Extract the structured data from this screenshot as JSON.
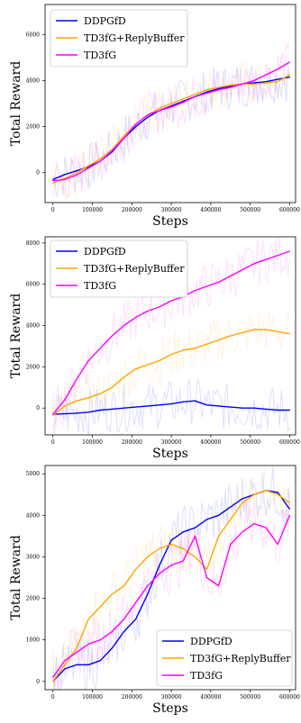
{
  "chart_data": [
    {
      "type": "line",
      "xlabel": "Steps",
      "ylabel": "Total Reward",
      "xlim": [
        -20000,
        615000
      ],
      "ylim": [
        -1300,
        7300
      ],
      "xticks": [
        "0",
        "100000",
        "200000",
        "300000",
        "400000",
        "500000",
        "600000"
      ],
      "yticks": [
        "0",
        "2000",
        "4000",
        "6000"
      ],
      "legend": "top-left",
      "x": [
        0,
        30000,
        60000,
        90000,
        120000,
        150000,
        180000,
        210000,
        240000,
        270000,
        300000,
        330000,
        360000,
        390000,
        420000,
        450000,
        480000,
        510000,
        540000,
        570000,
        600000
      ],
      "series": [
        {
          "name": "DDPGfD",
          "color": "#0000ff",
          "values": [
            -300,
            -80,
            80,
            250,
            500,
            900,
            1500,
            2000,
            2400,
            2700,
            2900,
            3100,
            3300,
            3500,
            3650,
            3750,
            3850,
            3900,
            3950,
            4050,
            4150
          ]
        },
        {
          "name": "TD3fG+ReplyBuffer",
          "color": "#ffa500",
          "values": [
            -450,
            -250,
            0,
            300,
            600,
            1000,
            1600,
            2100,
            2500,
            2800,
            3000,
            3200,
            3400,
            3600,
            3700,
            3800,
            3850,
            3850,
            3900,
            3950,
            4250
          ]
        },
        {
          "name": "TD3fG",
          "color": "#ff00ff",
          "values": [
            -350,
            -300,
            -100,
            200,
            500,
            950,
            1500,
            2100,
            2500,
            2700,
            2850,
            3050,
            3300,
            3450,
            3600,
            3700,
            3850,
            4000,
            4250,
            4500,
            4800
          ]
        }
      ]
    },
    {
      "type": "line",
      "xlabel": "Steps",
      "ylabel": "Total Reward",
      "xlim": [
        -20000,
        615000
      ],
      "ylim": [
        -1300,
        8300
      ],
      "xticks": [
        "0",
        "100000",
        "200000",
        "300000",
        "400000",
        "500000",
        "600000"
      ],
      "yticks": [
        "0",
        "2000",
        "4000",
        "6000",
        "8000"
      ],
      "legend": "top-left",
      "x": [
        0,
        30000,
        60000,
        90000,
        120000,
        150000,
        180000,
        210000,
        240000,
        270000,
        300000,
        330000,
        360000,
        390000,
        420000,
        450000,
        480000,
        510000,
        540000,
        570000,
        600000
      ],
      "series": [
        {
          "name": "DDPGfD",
          "color": "#0000ff",
          "values": [
            -300,
            -280,
            -250,
            -200,
            -100,
            -50,
            0,
            50,
            100,
            150,
            200,
            300,
            350,
            150,
            100,
            50,
            0,
            0,
            -50,
            -100,
            -100
          ]
        },
        {
          "name": "TD3fG+ReplyBuffer",
          "color": "#ffa500",
          "values": [
            -350,
            100,
            350,
            500,
            700,
            1000,
            1500,
            1900,
            2100,
            2300,
            2600,
            2800,
            2900,
            3100,
            3300,
            3500,
            3650,
            3800,
            3800,
            3700,
            3600
          ]
        },
        {
          "name": "TD3fG",
          "color": "#ff00ff",
          "values": [
            -300,
            400,
            1400,
            2300,
            2900,
            3500,
            4000,
            4400,
            4700,
            4900,
            5200,
            5400,
            5700,
            5900,
            6100,
            6400,
            6700,
            7000,
            7200,
            7400,
            7600
          ]
        }
      ]
    },
    {
      "type": "line",
      "xlabel": "Steps",
      "ylabel": "Total Reward",
      "xlim": [
        -20000,
        615000
      ],
      "ylim": [
        -200,
        5200
      ],
      "xticks": [
        "0",
        "100000",
        "200000",
        "300000",
        "400000",
        "500000",
        "600000"
      ],
      "yticks": [
        "0",
        "1000",
        "2000",
        "3000",
        "4000",
        "5000"
      ],
      "legend": "bottom-right",
      "x": [
        0,
        30000,
        60000,
        90000,
        120000,
        150000,
        180000,
        210000,
        240000,
        270000,
        300000,
        330000,
        360000,
        390000,
        420000,
        450000,
        480000,
        510000,
        540000,
        570000,
        600000
      ],
      "series": [
        {
          "name": "DDPGfD",
          "color": "#0000ff",
          "values": [
            0,
            300,
            400,
            400,
            500,
            800,
            1200,
            1500,
            2100,
            2800,
            3400,
            3600,
            3700,
            3900,
            4000,
            4200,
            4400,
            4500,
            4600,
            4550,
            4150
          ]
        },
        {
          "name": "TD3fG+ReplyBuffer",
          "color": "#ffa500",
          "values": [
            0,
            400,
            800,
            1500,
            1800,
            2100,
            2300,
            2700,
            3000,
            3200,
            3300,
            3200,
            3000,
            2700,
            3500,
            3900,
            4300,
            4500,
            4600,
            4500,
            4300
          ]
        },
        {
          "name": "TD3fG",
          "color": "#ff00ff",
          "values": [
            100,
            500,
            700,
            900,
            1000,
            1200,
            1500,
            1900,
            2300,
            2600,
            2800,
            2900,
            3500,
            2500,
            2300,
            3300,
            3600,
            3800,
            3700,
            3300,
            4000
          ]
        }
      ]
    }
  ]
}
